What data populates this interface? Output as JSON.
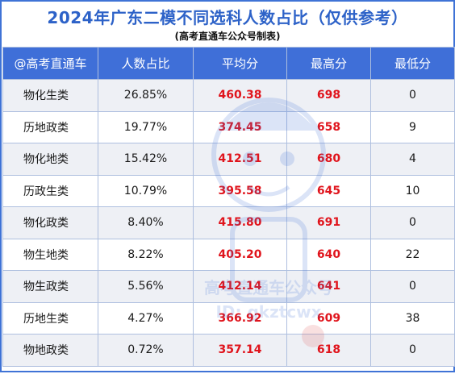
{
  "title": "2024年广东二模不同选科人数占比（仅供参考）",
  "subtitle": "(高考直通车公众号制表)",
  "columns": [
    "@高考直通车",
    "人数占比",
    "平均分",
    "最高分",
    "最低分"
  ],
  "rows": [
    {
      "subject": "物化生类",
      "ratio": "26.85%",
      "avg": "460.38",
      "max": "698",
      "min": "0"
    },
    {
      "subject": "历地政类",
      "ratio": "19.77%",
      "avg": "374.45",
      "max": "658",
      "min": "9"
    },
    {
      "subject": "物化地类",
      "ratio": "15.42%",
      "avg": "412.51",
      "max": "680",
      "min": "4"
    },
    {
      "subject": "历政生类",
      "ratio": "10.79%",
      "avg": "395.58",
      "max": "645",
      "min": "10"
    },
    {
      "subject": "物化政类",
      "ratio": "8.40%",
      "avg": "415.80",
      "max": "691",
      "min": "0"
    },
    {
      "subject": "物生地类",
      "ratio": "8.22%",
      "avg": "405.20",
      "max": "640",
      "min": "22"
    },
    {
      "subject": "物生政类",
      "ratio": "5.56%",
      "avg": "412.14",
      "max": "641",
      "min": "0"
    },
    {
      "subject": "历地生类",
      "ratio": "4.27%",
      "avg": "366.92",
      "max": "609",
      "min": "38"
    },
    {
      "subject": "物地政类",
      "ratio": "0.72%",
      "avg": "357.14",
      "max": "618",
      "min": "0"
    }
  ],
  "watermark": {
    "name": "高考直通车公众号",
    "id": "ID: gkztcwx"
  },
  "colors": {
    "header": "#3f6fd8",
    "title": "#2d62c8",
    "highlight": "#e0141c",
    "border": "#3f73d6"
  }
}
